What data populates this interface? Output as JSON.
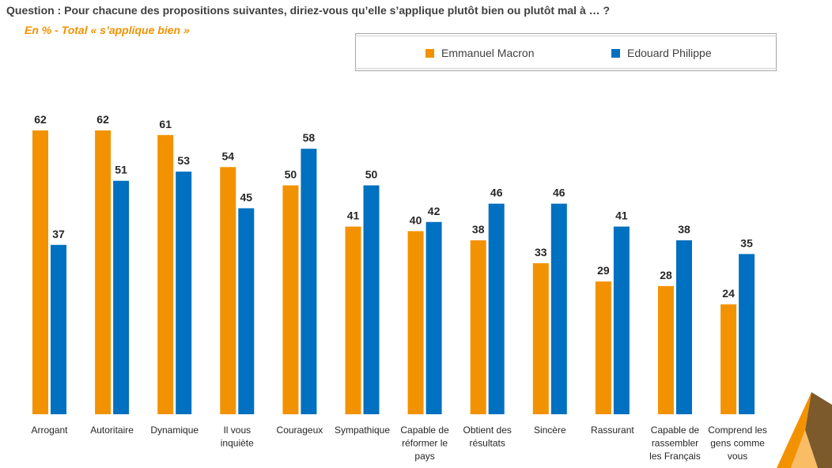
{
  "header": {
    "question": "Question : Pour chacune des propositions suivantes, diriez-vous qu’elle s’applique plutôt bien ou plutôt mal à … ?",
    "subtitle": "En  % - Total « s’applique bien »"
  },
  "colors": {
    "macron": "#f39200",
    "philippe": "#0070c0",
    "text": "#262626"
  },
  "chart_data": {
    "type": "bar",
    "title": "Question : Pour chacune des propositions suivantes, diriez-vous qu’elle s’applique plutôt bien ou plutôt mal à … ?",
    "subtitle": "En  % - Total « s’applique bien »",
    "xlabel": "",
    "ylabel": "",
    "ylim": [
      0,
      62
    ],
    "grid": false,
    "legend_position": "top-right",
    "categories": [
      [
        "Arrogant"
      ],
      [
        "Autoritaire"
      ],
      [
        "Dynamique"
      ],
      [
        "Il vous",
        "inquiète"
      ],
      [
        "Courageux"
      ],
      [
        "Sympathique"
      ],
      [
        "Capable de",
        "réformer le",
        "pays"
      ],
      [
        "Obtient des",
        "résultats"
      ],
      [
        "Sincère"
      ],
      [
        "Rassurant"
      ],
      [
        "Capable de",
        "rassembler",
        "les Français"
      ],
      [
        "Comprend les",
        "gens comme",
        "vous"
      ]
    ],
    "series": [
      {
        "name": "Emmanuel Macron",
        "color": "#f39200",
        "values": [
          62,
          62,
          61,
          54,
          50,
          41,
          40,
          38,
          33,
          29,
          28,
          24
        ]
      },
      {
        "name": "Edouard Philippe",
        "color": "#0070c0",
        "values": [
          37,
          51,
          53,
          45,
          58,
          50,
          42,
          46,
          46,
          41,
          38,
          35
        ]
      }
    ]
  }
}
